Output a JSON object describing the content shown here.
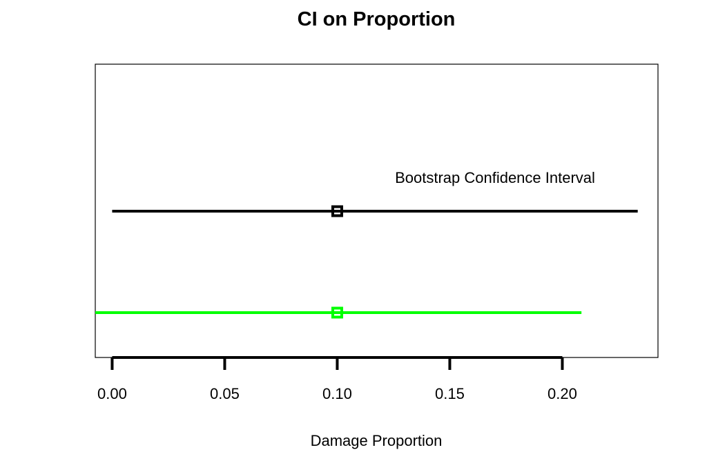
{
  "chart_data": {
    "type": "interval",
    "title": "CI on Proportion",
    "xlabel": "Damage Proportion",
    "ylabel": "",
    "xlim": [
      -0.0075,
      0.2425
    ],
    "x_ticks": [
      0.0,
      0.05,
      0.1,
      0.15,
      0.2
    ],
    "x_tick_labels": [
      "0.00",
      "0.05",
      "0.10",
      "0.15",
      "0.20"
    ],
    "grid": false,
    "annotations": [
      {
        "text": "Bootstrap Confidence Interval",
        "attached_to": 0
      }
    ],
    "series": [
      {
        "estimate": 0.1,
        "lower": 0.0,
        "upper": 0.2335,
        "color": "#000000"
      },
      {
        "estimate": 0.1,
        "lower": -0.0075,
        "upper": 0.2085,
        "color": "#00ff00"
      }
    ]
  }
}
